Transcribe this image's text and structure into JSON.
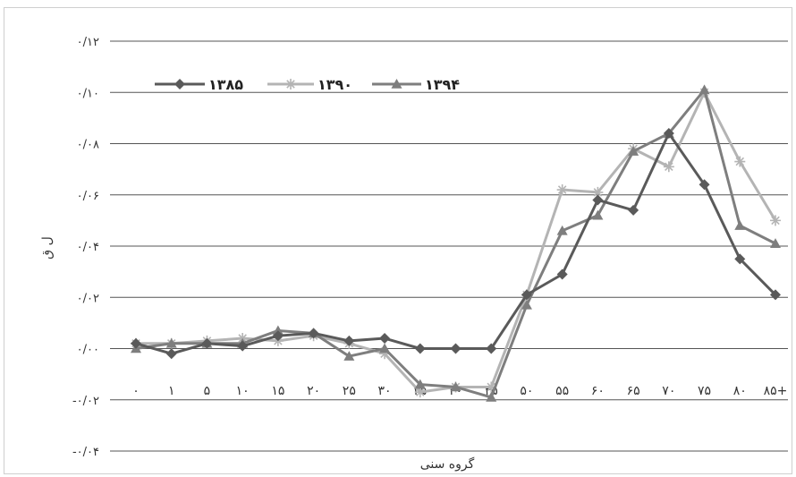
{
  "chart_data": {
    "type": "line",
    "title": "",
    "xlabel": "گروه سنی",
    "ylabel": "ل ق",
    "ylim": [
      -0.04,
      0.12
    ],
    "y_ticks": [
      "-۰/۰۴",
      "-۰/۰۲",
      "۰/۰۰",
      "۰/۰۲",
      "۰/۰۴",
      "۰/۰۶",
      "۰/۰۸",
      "۰/۱۰",
      "۰/۱۲"
    ],
    "y_tick_values": [
      -0.04,
      -0.02,
      0.0,
      0.02,
      0.04,
      0.06,
      0.08,
      0.1,
      0.12
    ],
    "categories": [
      "۰",
      "۱",
      "۵",
      "۱۰",
      "۱۵",
      "۲۰",
      "۲۵",
      "۳۰",
      "۳۵",
      "۴۰",
      "۴۵",
      "۵۰",
      "۵۵",
      "۶۰",
      "۶۵",
      "۷۰",
      "۷۵",
      "۸۰",
      "۸۵+"
    ],
    "grid": "horizontal",
    "legend_position": "top-left",
    "series": [
      {
        "name": "۱۳۸۵",
        "marker": "diamond",
        "color": "#5a5a5a",
        "values": [
          0.002,
          -0.002,
          0.002,
          0.001,
          0.005,
          0.006,
          0.003,
          0.004,
          0.0,
          0.0,
          0.0,
          0.021,
          0.029,
          0.058,
          0.054,
          0.084,
          0.064,
          0.035,
          0.021
        ]
      },
      {
        "name": "۱۳۹۰",
        "marker": "star",
        "color": "#b4b4b4",
        "values": [
          0.002,
          0.002,
          0.003,
          0.004,
          0.003,
          0.005,
          0.002,
          -0.002,
          -0.017,
          -0.015,
          -0.015,
          0.021,
          0.062,
          0.061,
          0.078,
          0.071,
          0.1,
          0.073,
          0.05
        ]
      },
      {
        "name": "۱۳۹۴",
        "marker": "triangle",
        "color": "#7e7e7e",
        "values": [
          0.0,
          0.002,
          0.002,
          0.002,
          0.007,
          0.006,
          -0.003,
          0.0,
          -0.014,
          -0.015,
          -0.019,
          0.017,
          0.046,
          0.052,
          0.077,
          0.084,
          0.101,
          0.048,
          0.041
        ]
      }
    ]
  }
}
